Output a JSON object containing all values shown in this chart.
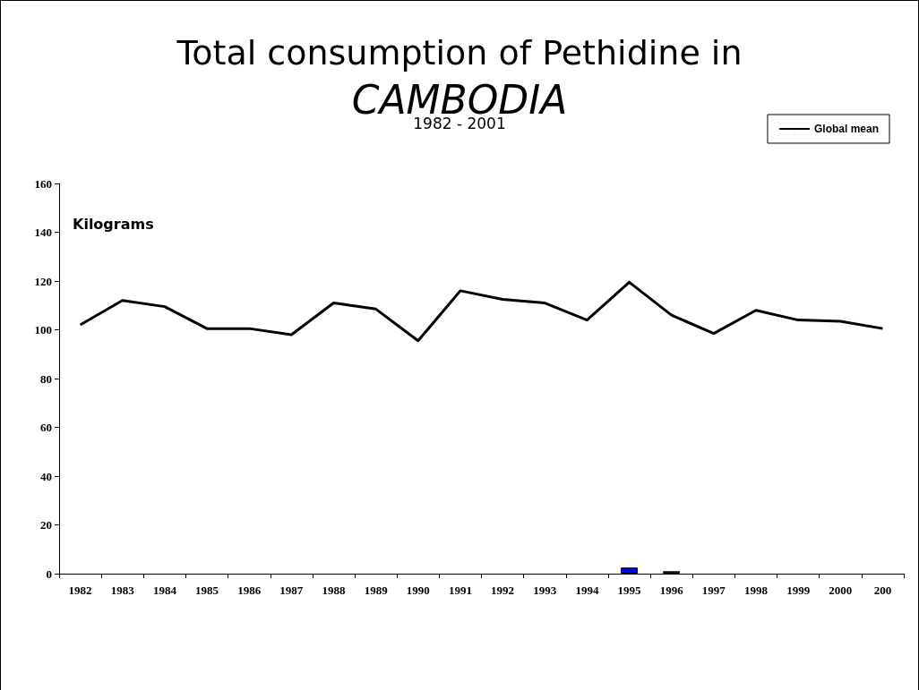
{
  "chart_data": {
    "type": "bar",
    "title": "Total consumption of Pethidine in CAMBODIA",
    "subtitle": "1982 - 2001",
    "ylabel": "Kilograms",
    "categories": [
      "1982",
      "1983",
      "1984",
      "1985",
      "1986",
      "1987",
      "1988",
      "1989",
      "1990",
      "1991",
      "1992",
      "1993",
      "1994",
      "1995",
      "1996",
      "1997",
      "1998",
      "1999",
      "2000",
      "200"
    ],
    "series": [
      {
        "color": "#0000ff",
        "values": [
          null,
          null,
          null,
          null,
          null,
          null,
          null,
          null,
          null,
          null,
          null,
          null,
          null,
          2.5,
          1,
          null,
          null,
          null,
          null,
          null
        ]
      },
      {
        "type": "line",
        "name": "Global mean",
        "color": "#000000",
        "values": [
          102,
          112,
          109.5,
          100.5,
          100.5,
          98,
          111,
          108.5,
          95.5,
          116,
          112.5,
          111,
          104,
          119.5,
          106,
          98.5,
          108,
          104,
          103.5,
          100.5
        ]
      }
    ],
    "ylim": [
      0,
      160
    ],
    "yticks": [
      0,
      20,
      40,
      60,
      80,
      100,
      120,
      140,
      160
    ],
    "grid": false,
    "legend": "top right",
    "marker": "none",
    "line_style": "solid"
  }
}
